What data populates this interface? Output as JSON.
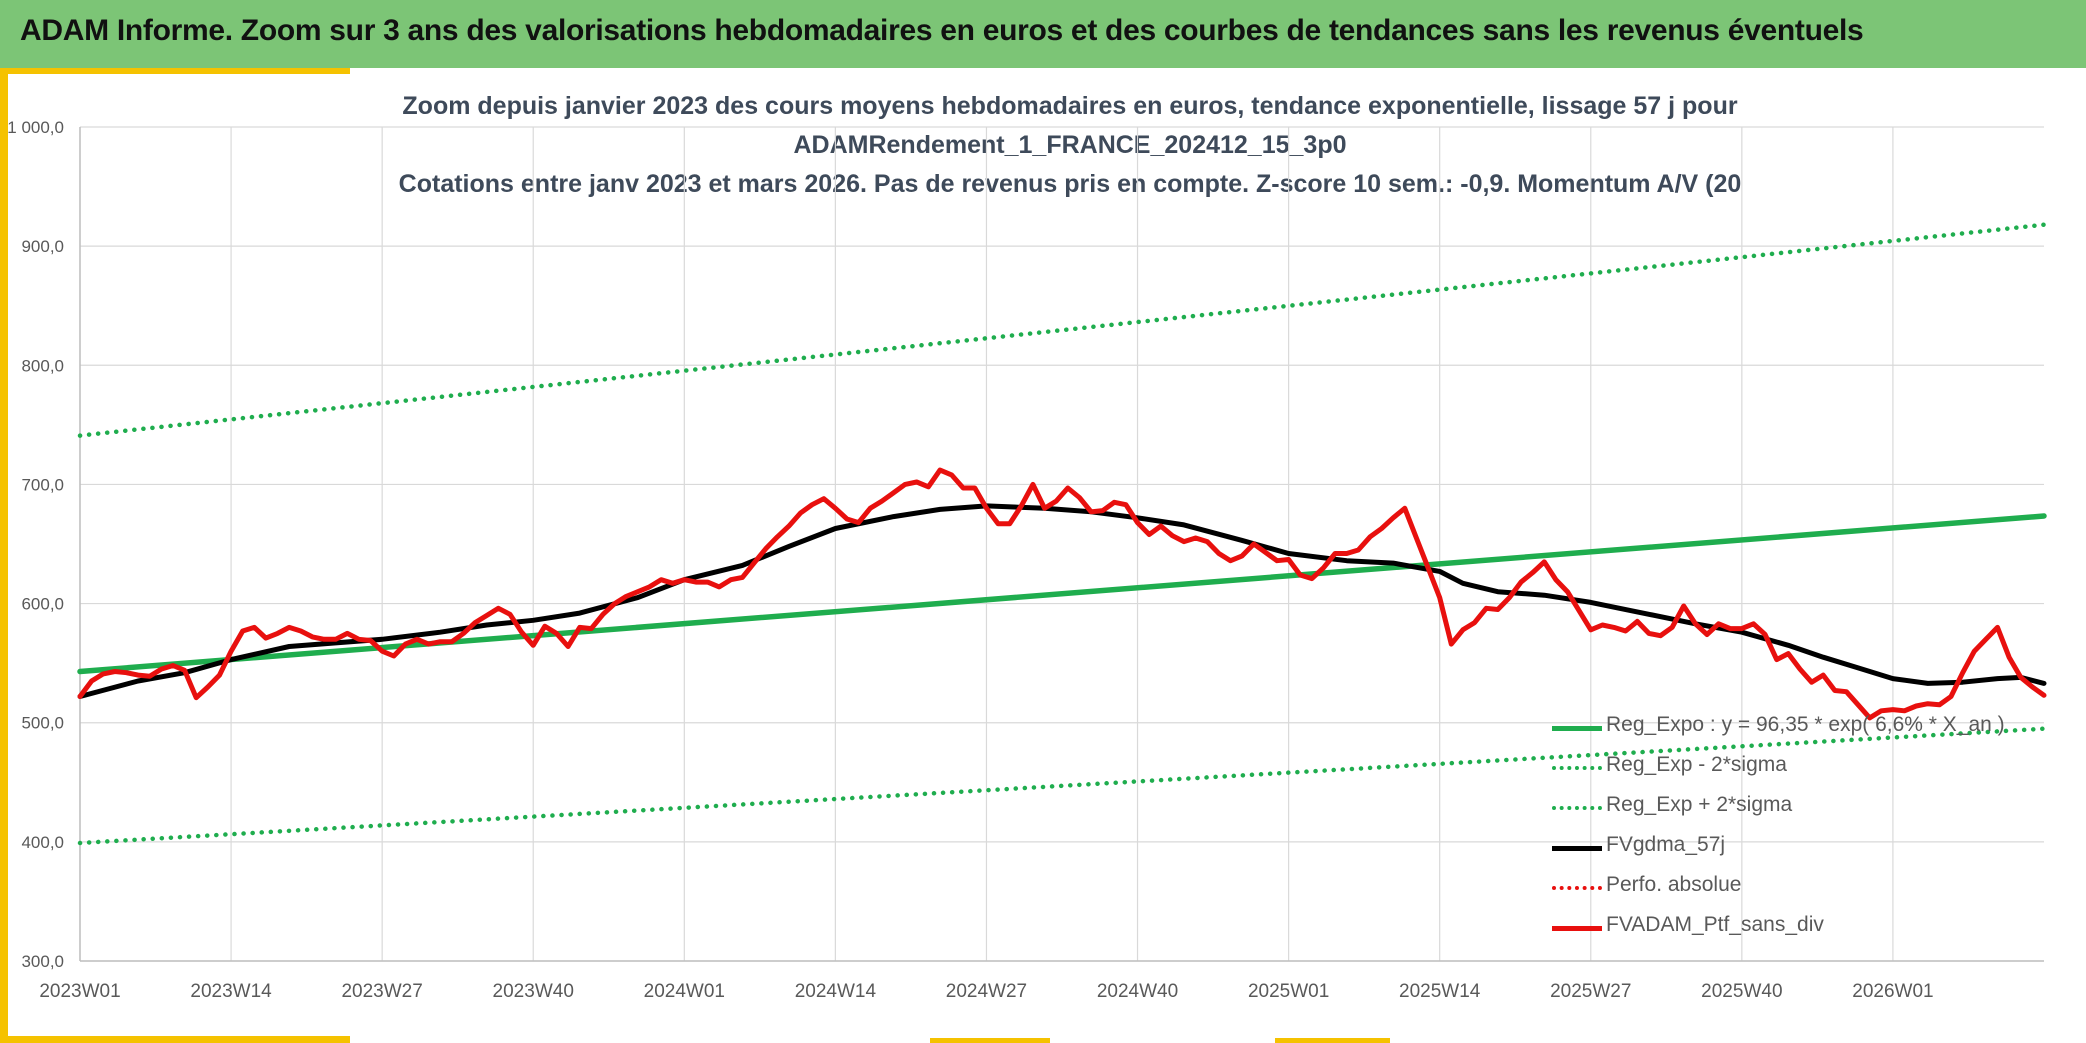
{
  "header": {
    "title": "ADAM Informe. Zoom sur 3 ans des valorisations hebdomadaires en euros et des courbes de tendances sans les revenus éventuels"
  },
  "colors": {
    "banner": "#7cc576",
    "accent": "#f5c200",
    "trend": "#1fad4e",
    "ma": "#000000",
    "portfolio": "#e8100e",
    "title_text": "#3e4a5a",
    "axis_text": "#595959"
  },
  "chart_data": {
    "type": "line",
    "title": [
      "Zoom depuis janvier 2023 des cours moyens hebdomadaires en euros, tendance exponentielle, lissage 57 j pour",
      "ADAMRendement_1_FRANCE_202412_15_3p0",
      "Cotations entre janv 2023 et mars 2026. Pas de revenus pris en compte. Z-score 10 sem.: -0,9. Momentum A/V (20"
    ],
    "xlabel": "",
    "ylabel": "",
    "ylim": [
      300,
      1000
    ],
    "yticks": [
      "1 000,0",
      "900,0",
      "800,0",
      "700,0",
      "600,0",
      "500,0",
      "400,0",
      "300,0"
    ],
    "ytick_values": [
      1000,
      900,
      800,
      700,
      600,
      500,
      400,
      300
    ],
    "x_range": [
      0,
      169
    ],
    "xticks": [
      {
        "x": 0,
        "label": "2023W01"
      },
      {
        "x": 13,
        "label": "2023W14"
      },
      {
        "x": 26,
        "label": "2023W27"
      },
      {
        "x": 39,
        "label": "2023W40"
      },
      {
        "x": 52,
        "label": "2024W01"
      },
      {
        "x": 65,
        "label": "2024W14"
      },
      {
        "x": 78,
        "label": "2024W27"
      },
      {
        "x": 91,
        "label": "2024W40"
      },
      {
        "x": 104,
        "label": "2025W01"
      },
      {
        "x": 117,
        "label": "2025W14"
      },
      {
        "x": 130,
        "label": "2025W27"
      },
      {
        "x": 143,
        "label": "2025W40"
      },
      {
        "x": 156,
        "label": "2026W01"
      }
    ],
    "grid": true,
    "legend_position": "bottom-right",
    "series": [
      {
        "name": "Reg_Expo : y = 96,35 * exp( 6,6% * X_an )",
        "style": "solid",
        "color": "#1fad4e",
        "points": [
          [
            0,
            543
          ],
          [
            169,
            673.5
          ]
        ]
      },
      {
        "name": "Reg_Exp - 2*sigma",
        "style": "dotted",
        "color": "#1fad4e",
        "points": [
          [
            0,
            399
          ],
          [
            169,
            495
          ]
        ]
      },
      {
        "name": "Reg_Exp + 2*sigma",
        "style": "dotted",
        "color": "#1fad4e",
        "points": [
          [
            0,
            741
          ],
          [
            169,
            918
          ]
        ]
      },
      {
        "name": "FVgdma_57j",
        "style": "solid",
        "color": "#000000",
        "points": [
          [
            0,
            522
          ],
          [
            5,
            535
          ],
          [
            9,
            542
          ],
          [
            13,
            553
          ],
          [
            18,
            564
          ],
          [
            22,
            567
          ],
          [
            26,
            570
          ],
          [
            31,
            576
          ],
          [
            35,
            582
          ],
          [
            39,
            586
          ],
          [
            43,
            592
          ],
          [
            48,
            605
          ],
          [
            52,
            620
          ],
          [
            57,
            632
          ],
          [
            61,
            648
          ],
          [
            65,
            663
          ],
          [
            70,
            673
          ],
          [
            74,
            679
          ],
          [
            78,
            682
          ],
          [
            83,
            680
          ],
          [
            87,
            677
          ],
          [
            91,
            672
          ],
          [
            95,
            666
          ],
          [
            100,
            653
          ],
          [
            104,
            642
          ],
          [
            109,
            636
          ],
          [
            113,
            634
          ],
          [
            117,
            627
          ],
          [
            119,
            617
          ],
          [
            122,
            610
          ],
          [
            126,
            607
          ],
          [
            130,
            601
          ],
          [
            135,
            591
          ],
          [
            139,
            583
          ],
          [
            143,
            576
          ],
          [
            147,
            565
          ],
          [
            150,
            555
          ],
          [
            153,
            546
          ],
          [
            156,
            537
          ],
          [
            159,
            533
          ],
          [
            162,
            534
          ],
          [
            165,
            537
          ],
          [
            167,
            538
          ],
          [
            169,
            533
          ]
        ]
      },
      {
        "name": "Perfo. absolue",
        "style": "dotted",
        "color": "#e8100e",
        "points": []
      },
      {
        "name": "FVADAM_Ptf_sans_div",
        "style": "solid",
        "color": "#e8100e",
        "points": [
          [
            0,
            522
          ],
          [
            1,
            535
          ],
          [
            2,
            541
          ],
          [
            3,
            543
          ],
          [
            4,
            542
          ],
          [
            5,
            540
          ],
          [
            6,
            539
          ],
          [
            7,
            545
          ],
          [
            8,
            548
          ],
          [
            9,
            544
          ],
          [
            10,
            521
          ],
          [
            11,
            530
          ],
          [
            12,
            540
          ],
          [
            13,
            560
          ],
          [
            14,
            577
          ],
          [
            15,
            580
          ],
          [
            16,
            571
          ],
          [
            17,
            575
          ],
          [
            18,
            580
          ],
          [
            19,
            577
          ],
          [
            20,
            572
          ],
          [
            21,
            570
          ],
          [
            22,
            570
          ],
          [
            23,
            575
          ],
          [
            24,
            570
          ],
          [
            25,
            569
          ],
          [
            26,
            560
          ],
          [
            27,
            556
          ],
          [
            28,
            566
          ],
          [
            29,
            570
          ],
          [
            30,
            566
          ],
          [
            31,
            568
          ],
          [
            32,
            568
          ],
          [
            33,
            575
          ],
          [
            34,
            584
          ],
          [
            35,
            590
          ],
          [
            36,
            596
          ],
          [
            37,
            591
          ],
          [
            38,
            576
          ],
          [
            39,
            565
          ],
          [
            40,
            581
          ],
          [
            41,
            575
          ],
          [
            42,
            564
          ],
          [
            43,
            580
          ],
          [
            44,
            579
          ],
          [
            45,
            591
          ],
          [
            46,
            600
          ],
          [
            47,
            606
          ],
          [
            48,
            610
          ],
          [
            49,
            614
          ],
          [
            50,
            620
          ],
          [
            51,
            617
          ],
          [
            52,
            620
          ],
          [
            53,
            618
          ],
          [
            54,
            618
          ],
          [
            55,
            614
          ],
          [
            56,
            620
          ],
          [
            57,
            622
          ],
          [
            58,
            634
          ],
          [
            59,
            646
          ],
          [
            60,
            656
          ],
          [
            61,
            665
          ],
          [
            62,
            676
          ],
          [
            63,
            683
          ],
          [
            64,
            688
          ],
          [
            65,
            680
          ],
          [
            66,
            671
          ],
          [
            67,
            668
          ],
          [
            68,
            680
          ],
          [
            69,
            686
          ],
          [
            70,
            693
          ],
          [
            71,
            700
          ],
          [
            72,
            702
          ],
          [
            73,
            698
          ],
          [
            74,
            712
          ],
          [
            75,
            708
          ],
          [
            76,
            697
          ],
          [
            77,
            697
          ],
          [
            78,
            680
          ],
          [
            79,
            667
          ],
          [
            80,
            667
          ],
          [
            81,
            682
          ],
          [
            82,
            700
          ],
          [
            83,
            680
          ],
          [
            84,
            686
          ],
          [
            85,
            697
          ],
          [
            86,
            689
          ],
          [
            87,
            677
          ],
          [
            88,
            678
          ],
          [
            89,
            685
          ],
          [
            90,
            683
          ],
          [
            91,
            668
          ],
          [
            92,
            658
          ],
          [
            93,
            665
          ],
          [
            94,
            657
          ],
          [
            95,
            652
          ],
          [
            96,
            655
          ],
          [
            97,
            652
          ],
          [
            98,
            642
          ],
          [
            99,
            636
          ],
          [
            100,
            640
          ],
          [
            101,
            650
          ],
          [
            102,
            643
          ],
          [
            103,
            636
          ],
          [
            104,
            637
          ],
          [
            105,
            624
          ],
          [
            106,
            621
          ],
          [
            107,
            630
          ],
          [
            108,
            642
          ],
          [
            109,
            642
          ],
          [
            110,
            645
          ],
          [
            111,
            656
          ],
          [
            112,
            663
          ],
          [
            113,
            672
          ],
          [
            114,
            680
          ],
          [
            115,
            655
          ],
          [
            116,
            630
          ],
          [
            117,
            605
          ],
          [
            118,
            566
          ],
          [
            119,
            578
          ],
          [
            120,
            584
          ],
          [
            121,
            596
          ],
          [
            122,
            595
          ],
          [
            123,
            605
          ],
          [
            124,
            618
          ],
          [
            125,
            626
          ],
          [
            126,
            635
          ],
          [
            127,
            620
          ],
          [
            128,
            610
          ],
          [
            129,
            594
          ],
          [
            130,
            578
          ],
          [
            131,
            582
          ],
          [
            132,
            580
          ],
          [
            133,
            577
          ],
          [
            134,
            585
          ],
          [
            135,
            575
          ],
          [
            136,
            573
          ],
          [
            137,
            580
          ],
          [
            138,
            598
          ],
          [
            139,
            583
          ],
          [
            140,
            574
          ],
          [
            141,
            583
          ],
          [
            142,
            579
          ],
          [
            143,
            579
          ],
          [
            144,
            583
          ],
          [
            145,
            574
          ],
          [
            146,
            553
          ],
          [
            147,
            558
          ],
          [
            148,
            545
          ],
          [
            149,
            534
          ],
          [
            150,
            540
          ],
          [
            151,
            527
          ],
          [
            152,
            526
          ],
          [
            153,
            515
          ],
          [
            154,
            504
          ],
          [
            155,
            510
          ],
          [
            156,
            511
          ],
          [
            157,
            510
          ],
          [
            158,
            514
          ],
          [
            159,
            516
          ],
          [
            160,
            515
          ],
          [
            161,
            522
          ],
          [
            162,
            542
          ],
          [
            163,
            560
          ],
          [
            164,
            570
          ],
          [
            165,
            580
          ],
          [
            166,
            555
          ],
          [
            167,
            538
          ],
          [
            168,
            530
          ],
          [
            169,
            523
          ]
        ]
      }
    ]
  }
}
